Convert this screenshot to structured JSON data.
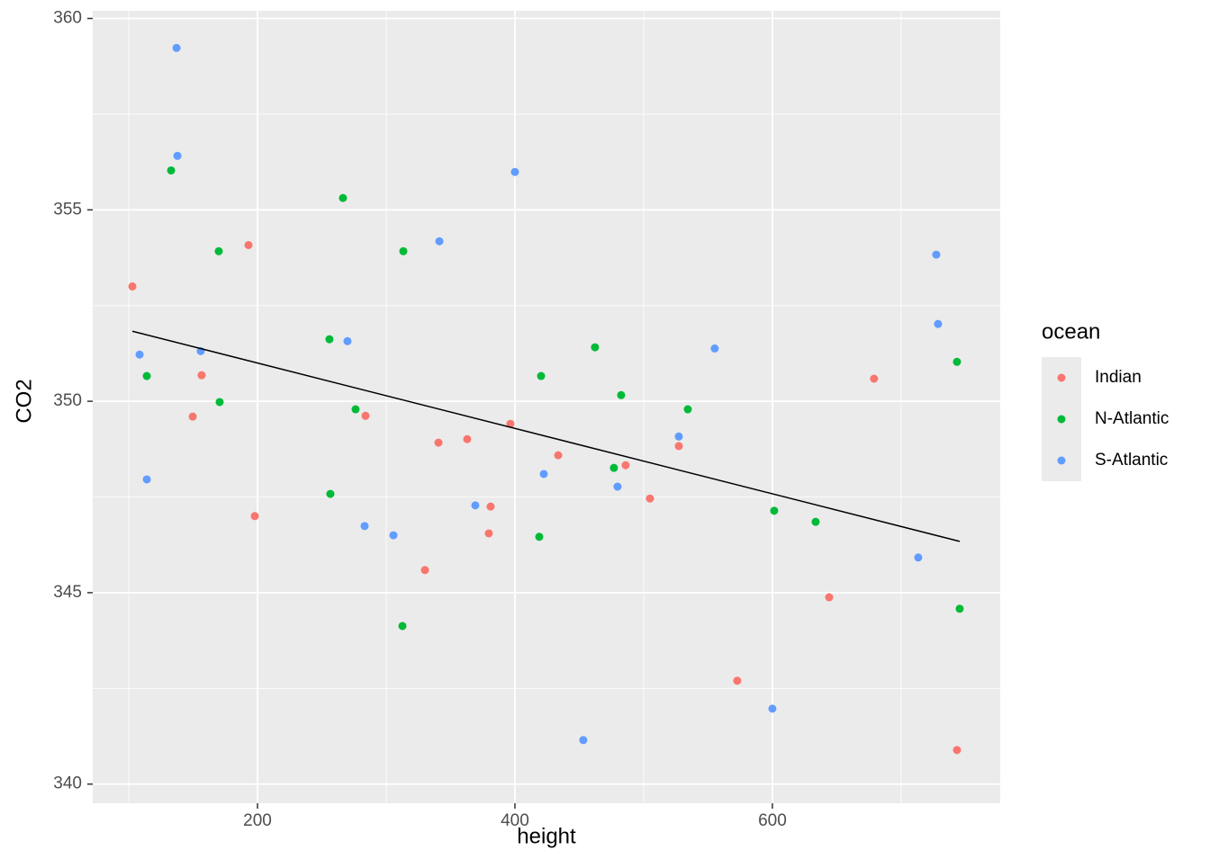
{
  "chart_data": {
    "type": "scatter",
    "x_label": "height",
    "y_label": "CO2",
    "legend_title": "ocean",
    "legend_position": "right",
    "xlim": [
      72,
      777
    ],
    "ylim": [
      339.5,
      360.2
    ],
    "xticks": [
      200,
      400,
      600
    ],
    "yticks": [
      340,
      345,
      350,
      355,
      360
    ],
    "xminor": [
      100,
      300,
      500,
      700
    ],
    "yminor": [
      342.5,
      347.5,
      352.5,
      357.5
    ],
    "grid": true,
    "series": [
      {
        "name": "Indian",
        "color": "#F8766D",
        "x": [
          102.8,
          193.0,
          156.6,
          149.7,
          197.9,
          283.9,
          340.6,
          362.9,
          396.5,
          381.1,
          379.7,
          330.1,
          433.6,
          486.0,
          504.9,
          527.3,
          572.7,
          644.1,
          679.0,
          743.4
        ],
        "values": [
          353.0,
          354.08,
          350.68,
          349.6,
          347.0,
          349.62,
          348.92,
          349.01,
          349.41,
          347.25,
          346.55,
          345.59,
          348.59,
          348.33,
          347.46,
          348.83,
          342.7,
          344.88,
          350.59,
          340.89
        ]
      },
      {
        "name": "N-Atlantic",
        "color": "#00BA38",
        "x": [
          132.9,
          169.9,
          114.0,
          170.6,
          266.4,
          313.3,
          255.9,
          276.2,
          256.6,
          312.6,
          420.3,
          418.9,
          462.2,
          482.5,
          476.9,
          534.3,
          601.4,
          633.6,
          743.4,
          745.5
        ],
        "values": [
          356.03,
          353.92,
          350.66,
          349.98,
          355.31,
          353.92,
          351.62,
          349.79,
          347.58,
          344.13,
          350.66,
          346.46,
          351.41,
          350.16,
          348.26,
          349.79,
          347.14,
          346.85,
          351.03,
          344.58
        ]
      },
      {
        "name": "S-Atlantic",
        "color": "#619CFF",
        "x": [
          137.1,
          137.8,
          108.4,
          155.9,
          114.0,
          269.9,
          283.2,
          305.6,
          341.3,
          400.0,
          369.2,
          422.4,
          479.7,
          453.1,
          527.3,
          555.2,
          600.0,
          713.3,
          727.3,
          728.7
        ],
        "values": [
          359.23,
          356.41,
          351.22,
          351.31,
          347.96,
          351.57,
          346.74,
          346.5,
          354.18,
          355.99,
          347.28,
          348.1,
          347.77,
          341.15,
          349.08,
          351.38,
          341.97,
          345.92,
          353.83,
          352.02
        ]
      }
    ],
    "fit": {
      "color": "#000000",
      "x": [
        102.8,
        745.5
      ],
      "values": [
        351.83,
        346.34
      ]
    }
  }
}
